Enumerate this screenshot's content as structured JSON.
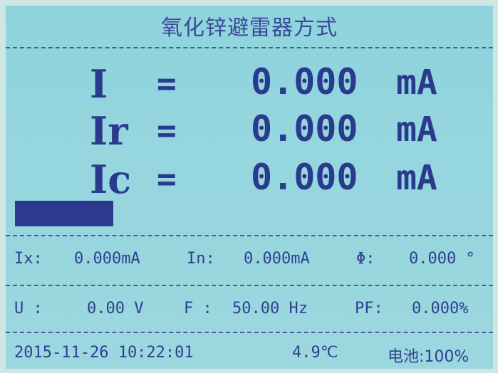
{
  "header": {
    "title": "氧化锌避雷器方式"
  },
  "main_readings": [
    {
      "label": "I",
      "eq": "=",
      "value": "0.000",
      "unit": "mA"
    },
    {
      "label": "Ir",
      "eq": "=",
      "value": "0.000",
      "unit": "mA"
    },
    {
      "label": "Ic",
      "eq": "=",
      "value": "0.000",
      "unit": "mA"
    }
  ],
  "measurements_row1": {
    "ix_label": "Ix:",
    "ix_value": "0.000mA",
    "in_label": "In:",
    "in_value": "0.000mA",
    "phi_label": "Φ:",
    "phi_value": "0.000 °"
  },
  "measurements_row2": {
    "u_label": "U :",
    "u_value": "0.00 V",
    "f_label": "F :",
    "f_value": "50.00 Hz",
    "pf_label": "PF:",
    "pf_value": "0.000%"
  },
  "status_bar": {
    "datetime": "2015-11-26 10:22:01",
    "temperature": "4.9℃",
    "battery": "电池:100%"
  },
  "colors": {
    "screen_bg": "#96d6df",
    "text": "#2b3a8f",
    "bar": "#2b3a8f"
  }
}
